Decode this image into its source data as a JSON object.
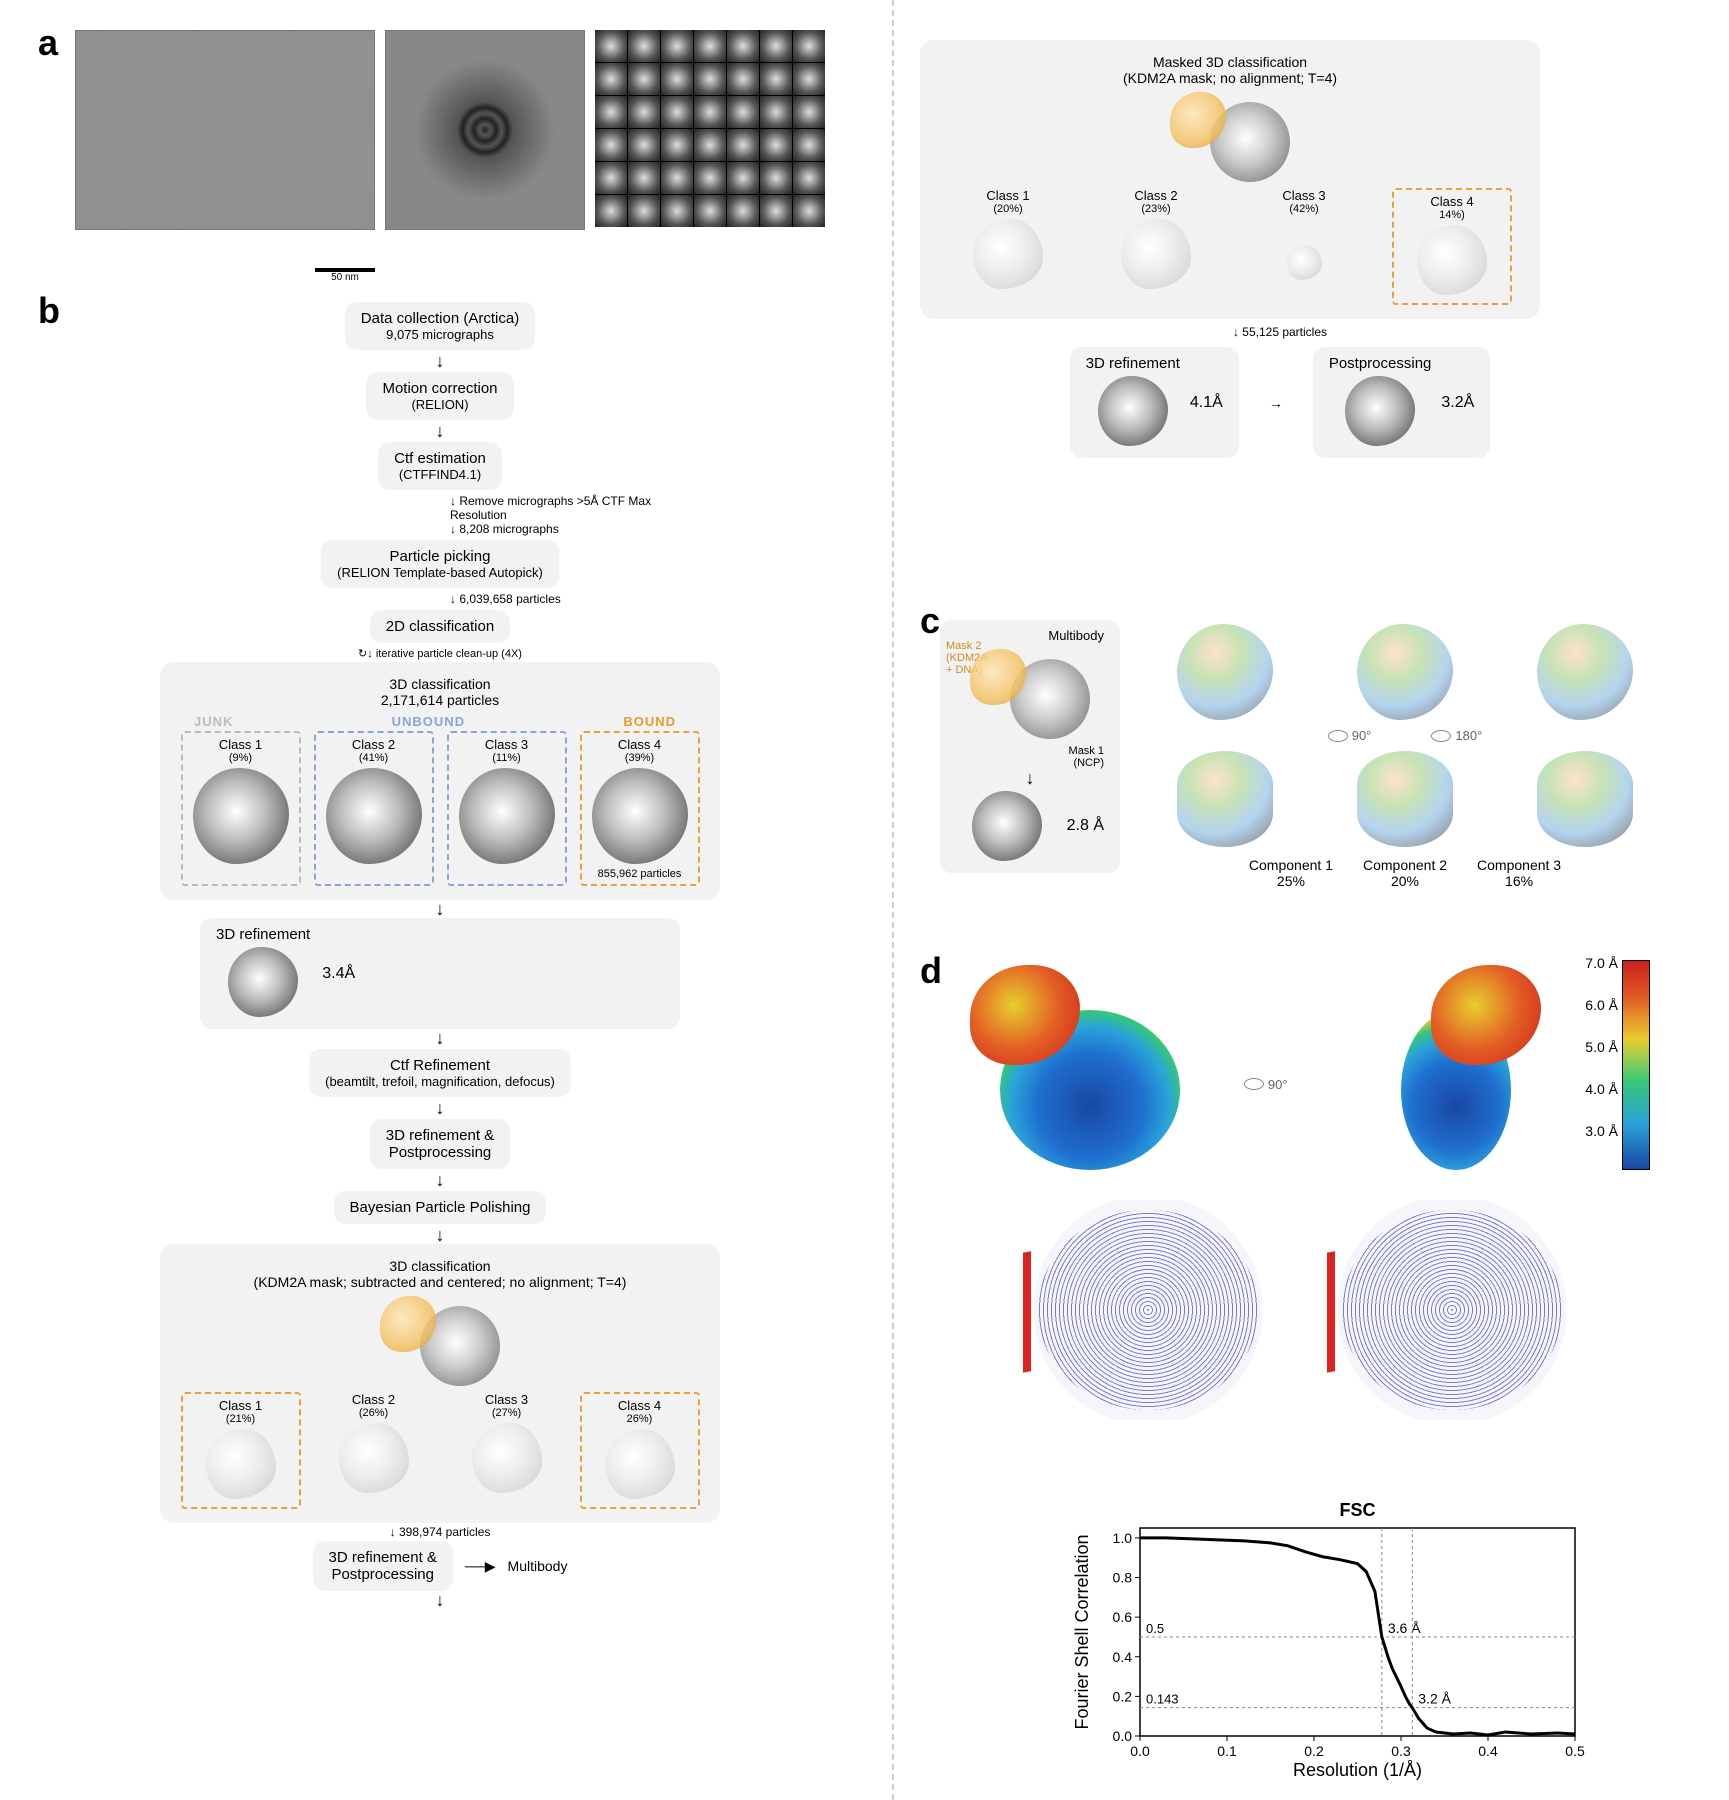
{
  "panels": {
    "a": "a",
    "b": "b",
    "c": "c",
    "d": "d"
  },
  "panel_a": {
    "scalebar": "50 nm",
    "class2d_grid": {
      "cols": 7,
      "rows": 6
    }
  },
  "workflow": {
    "step1": {
      "title": "Data collection (Arctica)",
      "sub": "9,075 micrographs"
    },
    "step2": {
      "title": "Motion correction",
      "sub": "(RELION)"
    },
    "step3": {
      "title": "Ctf estimation",
      "sub": "(CTFFIND4.1)"
    },
    "filter_note1": "Remove micrographs >5Å CTF Max Resolution",
    "filter_note2": "8,208 micrographs",
    "step4": {
      "title": "Particle picking",
      "sub": "(RELION Template-based Autopick)"
    },
    "step4_out": "6,039,658 particles",
    "step5": {
      "title": "2D classification"
    },
    "iter_note": "iterative particle clean-up (4X)",
    "class3d_a": {
      "title": "3D classification",
      "sub": "2,171,614 particles",
      "labels": {
        "junk": "JUNK",
        "unbound": "UNBOUND",
        "bound": "BOUND"
      },
      "classes": [
        {
          "name": "Class 1",
          "pct": "(9%)"
        },
        {
          "name": "Class 2",
          "pct": "(41%)"
        },
        {
          "name": "Class 3",
          "pct": "(11%)"
        },
        {
          "name": "Class 4",
          "pct": "(39%)"
        }
      ],
      "bound_particles": "855,962 particles"
    },
    "refine1": {
      "title": "3D refinement",
      "res": "3.4Å"
    },
    "ctfrefine": {
      "title": "Ctf Refinement",
      "sub": "(beamtilt, trefoil, magnification, defocus)"
    },
    "refine_pp": "3D refinement &\nPostprocessing",
    "polish": "Bayesian Particle Polishing",
    "class3d_b": {
      "title": "3D classification",
      "sub": "(KDM2A mask; subtracted and centered; no alignment; T=4)",
      "classes": [
        {
          "name": "Class 1",
          "pct": "(21%)"
        },
        {
          "name": "Class 2",
          "pct": "(26%)"
        },
        {
          "name": "Class 3",
          "pct": "(27%)"
        },
        {
          "name": "Class 4",
          "pct": "26%)"
        }
      ],
      "out_particles": "398,974 particles"
    },
    "refine_pp2": "3D refinement &\nPostprocessing",
    "multibody_link": "Multibody"
  },
  "right_top": {
    "title": "Masked 3D classification",
    "sub": "(KDM2A mask; no alignment; T=4)",
    "classes": [
      {
        "name": "Class 1",
        "pct": "(20%)"
      },
      {
        "name": "Class 2",
        "pct": "(23%)"
      },
      {
        "name": "Class 3",
        "pct": "(42%)"
      },
      {
        "name": "Class 4",
        "pct": "14%)"
      }
    ],
    "out_particles": "55,125 particles",
    "refine": {
      "title": "3D refinement",
      "res": "4.1Å"
    },
    "postproc": {
      "title": "Postprocessing",
      "res": "3.2Å"
    }
  },
  "panel_c": {
    "multibody": "Multibody",
    "mask2": "Mask 2\n(KDM2A\n+ DNA)",
    "mask1": "Mask 1\n(NCP)",
    "res": "2.8 Å",
    "rot1": "90°",
    "rot2": "180°",
    "components": [
      {
        "name": "Component 1",
        "pct": "25%"
      },
      {
        "name": "Component 2",
        "pct": "20%"
      },
      {
        "name": "Component 3",
        "pct": "16%"
      }
    ]
  },
  "panel_d": {
    "rot": "90°",
    "colorbar": {
      "ticks": [
        "7.0 Å",
        "6.0 Å",
        "5.0 Å",
        "4.0 Å",
        "3.0 Å"
      ],
      "colors_top_to_bottom": [
        "#c9201a",
        "#e35d25",
        "#e7cf2d",
        "#35c77a",
        "#2aa3d9",
        "#1947a3"
      ]
    },
    "fsc": {
      "type": "line",
      "title": "FSC",
      "xlabel": "Resolution (1/Å)",
      "ylabel": "Fourier Shell Correlation",
      "xlim": [
        0,
        0.5
      ],
      "ylim": [
        0,
        1.05
      ],
      "xticks": [
        0,
        0.1,
        0.2,
        0.3,
        0.4,
        0.5
      ],
      "yticks": [
        0,
        0.2,
        0.4,
        0.6,
        0.8,
        1.0
      ],
      "thresholds": [
        {
          "y": 0.5,
          "label": "0.5",
          "res_label": "3.6 Å",
          "x_at": 0.278
        },
        {
          "y": 0.143,
          "label": "0.143",
          "res_label": "3.2 Å",
          "x_at": 0.313
        }
      ],
      "line_color": "#000000",
      "line_width": 3,
      "grid_color": "#888888",
      "background_color": "#ffffff",
      "title_fontsize": 18,
      "label_fontsize": 18,
      "tick_fontsize": 14,
      "data": {
        "x": [
          0.0,
          0.03,
          0.06,
          0.09,
          0.12,
          0.15,
          0.17,
          0.19,
          0.21,
          0.23,
          0.25,
          0.26,
          0.27,
          0.278,
          0.285,
          0.29,
          0.3,
          0.305,
          0.31,
          0.313,
          0.32,
          0.33,
          0.34,
          0.36,
          0.38,
          0.4,
          0.42,
          0.45,
          0.48,
          0.5
        ],
        "y": [
          1.0,
          1.0,
          0.995,
          0.99,
          0.985,
          0.975,
          0.96,
          0.93,
          0.905,
          0.89,
          0.87,
          0.83,
          0.73,
          0.5,
          0.4,
          0.34,
          0.25,
          0.2,
          0.16,
          0.143,
          0.09,
          0.04,
          0.02,
          0.01,
          0.015,
          0.005,
          0.02,
          0.01,
          0.015,
          0.01
        ]
      }
    }
  },
  "colors": {
    "box_bg": "#f2f2f2",
    "orange": "#e8a23c",
    "blue": "#8aa3d8",
    "grey_dash": "#bbbbbb"
  }
}
